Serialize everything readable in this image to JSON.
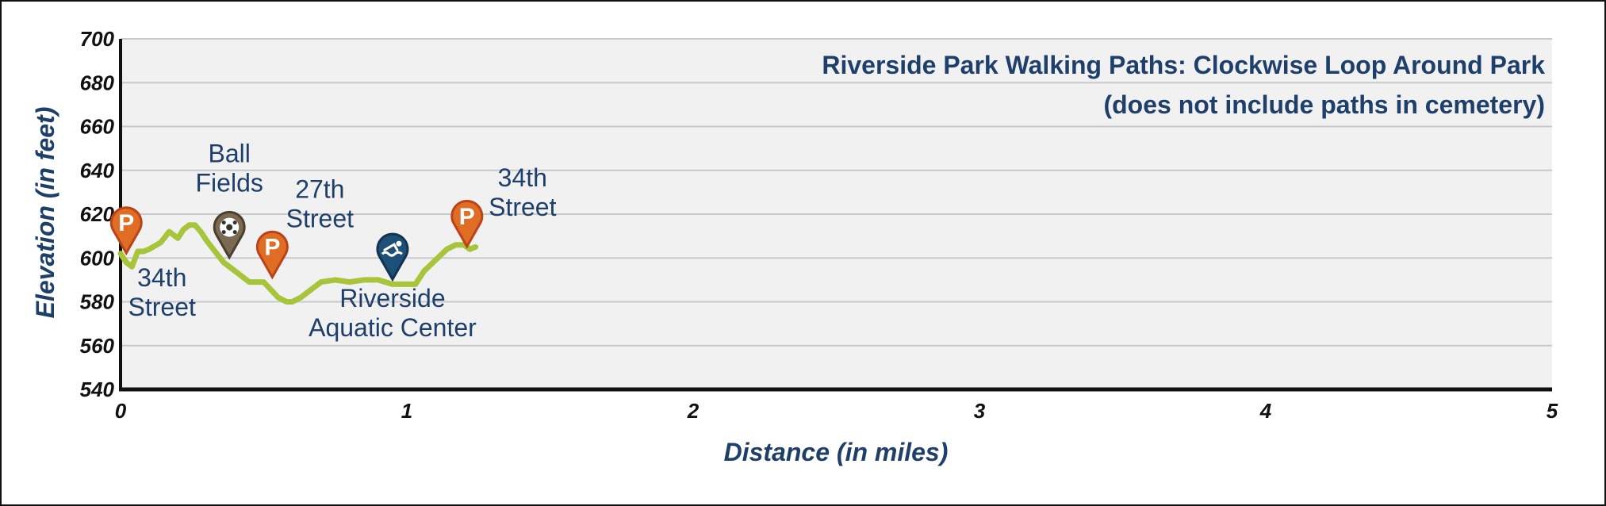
{
  "colors": {
    "navy": "#1f3f6b",
    "route": "#a8c43a",
    "plot_bg": "#f1f1f1",
    "grid": "#c9c9c9",
    "parking": "#e06d24",
    "parking_dark": "#b9431a",
    "ballfield": "#7b6a52",
    "aquatic": "#1e4f77"
  },
  "chart_data": {
    "type": "line",
    "title": "Riverside Park Walking Paths: Clockwise Loop Around Park",
    "subtitle": "(does not include paths in cemetery)",
    "xlabel": "Distance (in miles)",
    "ylabel": "Elevation (in feet)",
    "xlim": [
      0,
      5
    ],
    "ylim": [
      540,
      700
    ],
    "xticks": [
      0,
      1,
      2,
      3,
      4,
      5
    ],
    "yticks": [
      540,
      560,
      580,
      600,
      620,
      640,
      660,
      680,
      700
    ],
    "grid": true,
    "series": [
      {
        "x": [
          0,
          0.02,
          0.04,
          0.06,
          0.08,
          0.1,
          0.14,
          0.17,
          0.2,
          0.22,
          0.24,
          0.26,
          0.28,
          0.3,
          0.33,
          0.36,
          0.4,
          0.45,
          0.5,
          0.55,
          0.58,
          0.6,
          0.63,
          0.66,
          0.7,
          0.75,
          0.8,
          0.85,
          0.9,
          0.95,
          1.0,
          1.03,
          1.06,
          1.1,
          1.14,
          1.17,
          1.2,
          1.22,
          1.24
        ],
        "y": [
          602,
          598,
          596,
          603,
          603,
          604,
          607,
          612,
          609,
          613,
          615,
          615,
          612,
          608,
          603,
          598,
          594,
          589,
          589,
          582,
          580,
          580,
          582,
          585,
          589,
          590,
          589,
          590,
          590,
          588,
          588,
          588,
          594,
          599,
          604,
          606,
          606,
          604,
          605
        ]
      }
    ],
    "annotations": [
      {
        "text": [
          "34th",
          "Street"
        ],
        "x": 0.02,
        "y": 616,
        "icon": "parking"
      },
      {
        "text": [
          "Ball",
          "Fields"
        ],
        "x": 0.38,
        "y": 614,
        "icon": "ballfield"
      },
      {
        "text": [
          "27th",
          "Street"
        ],
        "x": 0.53,
        "y": 605,
        "icon": "parking"
      },
      {
        "text": [
          "Riverside",
          "Aquatic Center"
        ],
        "x": 0.95,
        "y": 604,
        "icon": "aquatic"
      },
      {
        "text": [
          "34th",
          "Street"
        ],
        "x": 1.21,
        "y": 619,
        "icon": "parking"
      }
    ]
  }
}
